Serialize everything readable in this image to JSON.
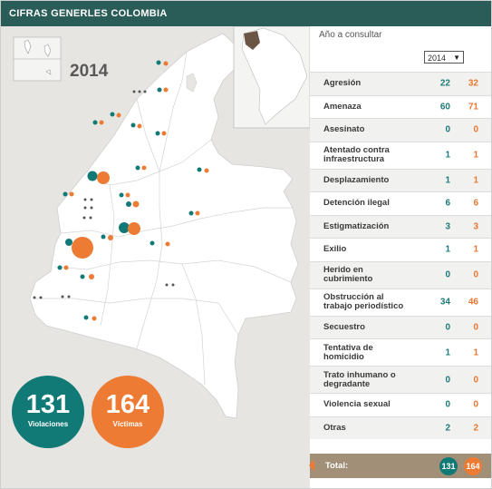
{
  "header": {
    "title": "CIFRAS GENERLES COLOMBIA"
  },
  "map": {
    "year": "2014",
    "colors": {
      "violaciones": "#127a76",
      "victimas": "#ee7b34",
      "land": "#ffffff",
      "sea": "#e6e5e1"
    },
    "totals": {
      "violaciones_value": "131",
      "violaciones_label": "Violaciones",
      "victimas_value": "164",
      "victimas_label": "Víctimas"
    }
  },
  "panel": {
    "select_label": "Año a consultar",
    "selected_year": "2014",
    "rows": [
      {
        "label": "Agresión",
        "violaciones": "22",
        "victimas": "32"
      },
      {
        "label": "Amenaza",
        "violaciones": "60",
        "victimas": "71"
      },
      {
        "label": "Asesinato",
        "violaciones": "0",
        "victimas": "0"
      },
      {
        "label": "Atentado contra infraestructura",
        "violaciones": "1",
        "victimas": "1"
      },
      {
        "label": "Desplazamiento",
        "violaciones": "1",
        "victimas": "1"
      },
      {
        "label": "Detención ilegal",
        "violaciones": "6",
        "victimas": "6"
      },
      {
        "label": "Estigmatización",
        "violaciones": "3",
        "victimas": "3"
      },
      {
        "label": "Exilio",
        "violaciones": "1",
        "victimas": "1"
      },
      {
        "label": "Herido en cubrimiento",
        "violaciones": "0",
        "victimas": "0"
      },
      {
        "label": "Obstrucción al trabajo periodístico",
        "violaciones": "34",
        "victimas": "46"
      },
      {
        "label": "Secuestro",
        "violaciones": "0",
        "victimas": "0"
      },
      {
        "label": "Tentativa de homicidio",
        "violaciones": "1",
        "victimas": "1"
      },
      {
        "label": "Trato inhumano o degradante",
        "violaciones": "0",
        "victimas": "0"
      },
      {
        "label": "Violencia sexual",
        "violaciones": "0",
        "victimas": "0"
      },
      {
        "label": "Otras",
        "violaciones": "2",
        "victimas": "2"
      }
    ],
    "total": {
      "label": "Total:",
      "violaciones": "131",
      "victimas": "164"
    }
  }
}
